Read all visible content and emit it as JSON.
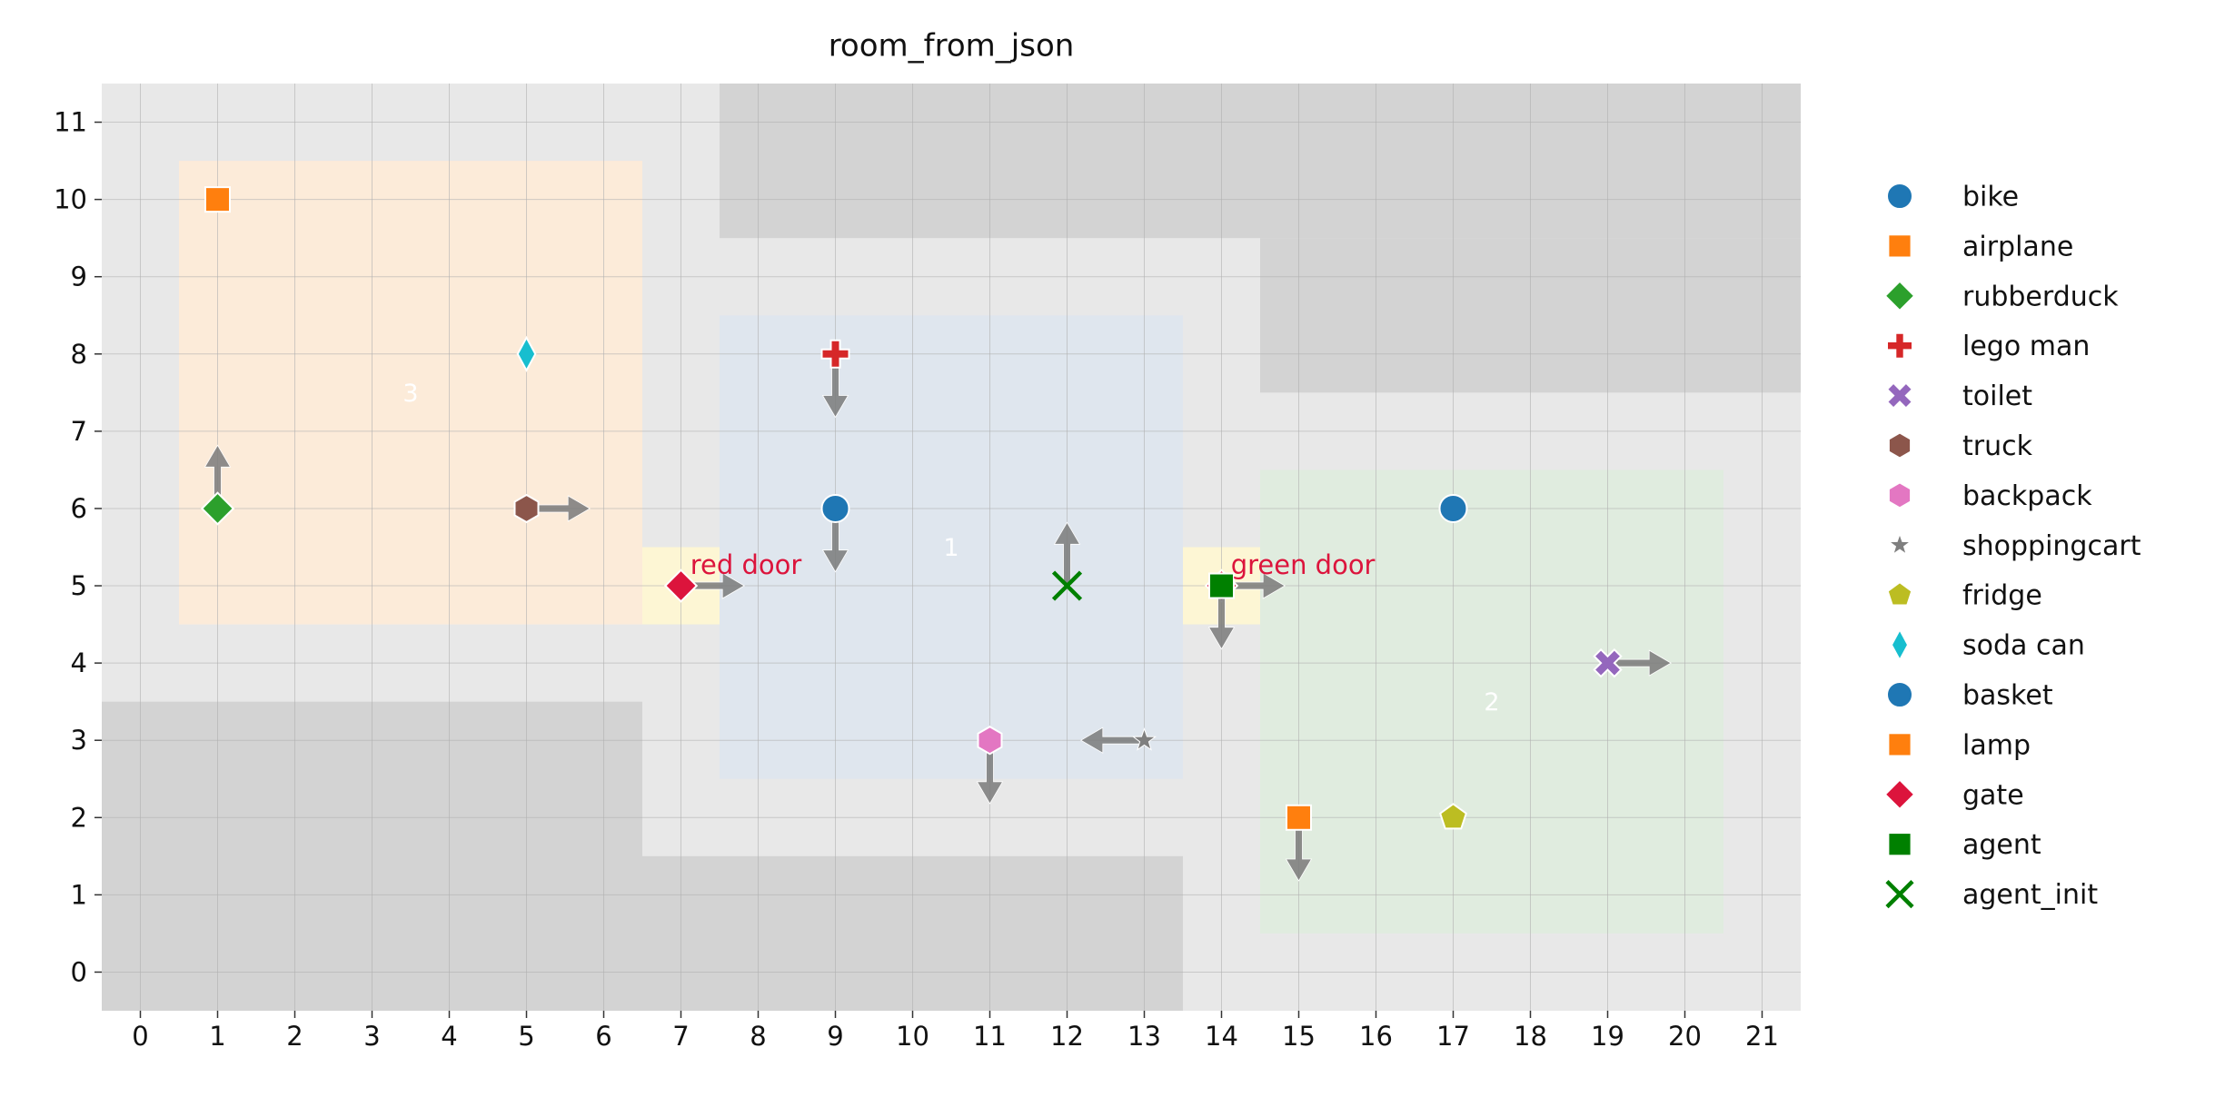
{
  "chart_data": {
    "type": "scatter",
    "title": "room_from_json",
    "xlim": [
      -0.5,
      21.5
    ],
    "ylim": [
      -0.5,
      11.5
    ],
    "xticks": [
      0,
      1,
      2,
      3,
      4,
      5,
      6,
      7,
      8,
      9,
      10,
      11,
      12,
      13,
      14,
      15,
      16,
      17,
      18,
      19,
      20,
      21
    ],
    "yticks": [
      0,
      1,
      2,
      3,
      4,
      5,
      6,
      7,
      8,
      9,
      10,
      11
    ],
    "grid": true,
    "background": "#e8e8e8",
    "walls": {
      "color": "#d3d3d3",
      "regions": [
        {
          "x": [
            -0.5,
            6.5
          ],
          "y": [
            -0.5,
            3.5
          ]
        },
        {
          "x": [
            6.5,
            13.5
          ],
          "y": [
            -0.5,
            1.5
          ]
        },
        {
          "x": [
            7.5,
            21.5
          ],
          "y": [
            9.5,
            11.5
          ]
        },
        {
          "x": [
            14.5,
            21.5
          ],
          "y": [
            7.5,
            9.5
          ]
        }
      ]
    },
    "rooms": [
      {
        "label": "3",
        "color": "#fcebd9",
        "x": [
          0.5,
          6.5
        ],
        "y": [
          4.5,
          10.5
        ]
      },
      {
        "label": "1",
        "color": "#dfe6ee",
        "x": [
          7.5,
          13.5
        ],
        "y": [
          2.5,
          8.5
        ]
      },
      {
        "label": "2",
        "color": "#e0ecdf",
        "x": [
          14.5,
          20.5
        ],
        "y": [
          0.5,
          6.5
        ]
      }
    ],
    "doors": [
      {
        "label": "red door",
        "color": "#fdf6d4",
        "label_color": "#dc143c",
        "x": [
          6.5,
          7.5
        ],
        "y": [
          4.5,
          5.5
        ]
      },
      {
        "label": "green door",
        "color": "#fdf6d4",
        "label_color": "#dc143c",
        "x": [
          13.5,
          14.5
        ],
        "y": [
          4.5,
          5.5
        ]
      }
    ],
    "series": [
      {
        "name": "bike",
        "color": "#1f77b4",
        "marker": "circle",
        "x": [
          9
        ],
        "y": [
          6
        ],
        "direction": [
          "down"
        ]
      },
      {
        "name": "airplane",
        "color": "#ff7f0e",
        "marker": "square",
        "x": [
          1
        ],
        "y": [
          10
        ],
        "direction": [
          null
        ]
      },
      {
        "name": "rubberduck",
        "color": "#2ca02c",
        "marker": "diamond",
        "x": [
          1
        ],
        "y": [
          6
        ],
        "direction": [
          "up"
        ]
      },
      {
        "name": "lego man",
        "color": "#d62728",
        "marker": "plus",
        "x": [
          9
        ],
        "y": [
          8
        ],
        "direction": [
          "down"
        ]
      },
      {
        "name": "toilet",
        "color": "#9467bd",
        "marker": "X",
        "x": [
          19
        ],
        "y": [
          4
        ],
        "direction": [
          "right"
        ]
      },
      {
        "name": "truck",
        "color": "#8c564b",
        "marker": "hexagon",
        "x": [
          5
        ],
        "y": [
          6
        ],
        "direction": [
          "right"
        ]
      },
      {
        "name": "backpack",
        "color": "#e377c2",
        "marker": "hexagon",
        "x": [
          11
        ],
        "y": [
          3
        ],
        "direction": [
          "down"
        ]
      },
      {
        "name": "shoppingcart",
        "color": "#7f7f7f",
        "marker": "star",
        "x": [
          13
        ],
        "y": [
          3
        ],
        "direction": [
          "left"
        ]
      },
      {
        "name": "fridge",
        "color": "#bcbd22",
        "marker": "pentagon",
        "x": [
          17
        ],
        "y": [
          2
        ],
        "direction": [
          null
        ]
      },
      {
        "name": "soda can",
        "color": "#17becf",
        "marker": "thin_diamond",
        "x": [
          5
        ],
        "y": [
          8
        ],
        "direction": [
          null
        ]
      },
      {
        "name": "basket",
        "color": "#1f77b4",
        "marker": "circle",
        "x": [
          17
        ],
        "y": [
          6
        ],
        "direction": [
          null
        ]
      },
      {
        "name": "lamp",
        "color": "#ff7f0e",
        "marker": "square",
        "x": [
          15
        ],
        "y": [
          2
        ],
        "direction": [
          "down"
        ]
      },
      {
        "name": "gate",
        "color": "#dc143c",
        "marker": "diamond",
        "x": [
          7,
          14
        ],
        "y": [
          5,
          5
        ],
        "direction": [
          "right",
          "right"
        ]
      },
      {
        "name": "agent",
        "color": "#008000",
        "marker": "square",
        "x": [
          14
        ],
        "y": [
          5
        ],
        "direction": [
          "down"
        ]
      },
      {
        "name": "agent_init",
        "color": "#008000",
        "marker": "x",
        "x": [
          12
        ],
        "y": [
          5
        ],
        "direction": [
          "up"
        ]
      }
    ]
  }
}
